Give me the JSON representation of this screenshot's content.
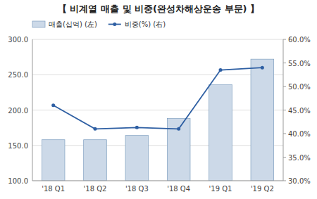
{
  "chart_data": {
    "type": "bar",
    "title": "【 비계열 매출 및 비중(완성차해상운송 부문) 】",
    "categories": [
      "'18 Q1",
      "'18 Q2",
      "'18 Q3",
      "'18 Q4",
      "'19 Q1",
      "'19 Q2"
    ],
    "series": [
      {
        "name": "매출(십억) (左)",
        "type": "bar",
        "color": "#ccd9e8",
        "values": [
          158.0,
          158.0,
          164.0,
          188.0,
          236.0,
          272.0
        ]
      },
      {
        "name": "비중(%) (右)",
        "type": "line",
        "axis": "y2",
        "color": "#2e5fa3",
        "marker": "circle",
        "values": [
          46.0,
          41.0,
          41.3,
          41.0,
          53.5,
          54.0
        ]
      }
    ],
    "ylim": [
      100.0,
      300.0
    ],
    "yticks": [
      {
        "value": 100.0,
        "label": "100.0"
      },
      {
        "value": 150.0,
        "label": "150.0"
      },
      {
        "value": 200.0,
        "label": "200.0"
      },
      {
        "value": 250.0,
        "label": "250.0"
      },
      {
        "value": 300.0,
        "label": "300.0"
      }
    ],
    "y2lim": [
      30.0,
      60.0
    ],
    "y2ticks": [
      {
        "value": 30.0,
        "label": "30.0%"
      },
      {
        "value": 35.0,
        "label": "35.0%"
      },
      {
        "value": 40.0,
        "label": "40.0%"
      },
      {
        "value": 45.0,
        "label": "45.0%"
      },
      {
        "value": 50.0,
        "label": "50.0%"
      },
      {
        "value": 55.0,
        "label": "55.0%"
      },
      {
        "value": 60.0,
        "label": "60.0%"
      }
    ],
    "grid": true,
    "legend": "top-left"
  }
}
